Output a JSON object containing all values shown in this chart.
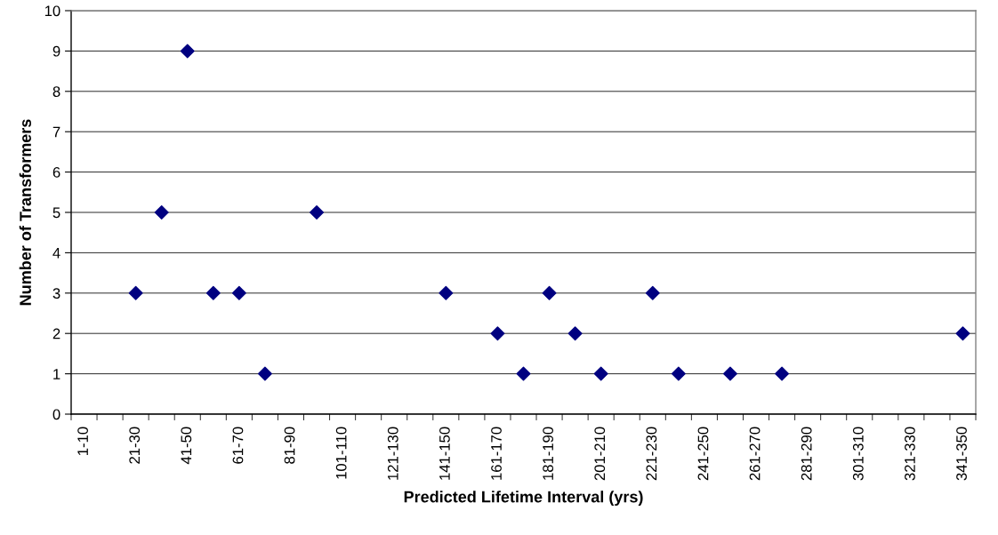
{
  "chart_data": {
    "type": "scatter",
    "xlabel": "Predicted Lifetime Interval (yrs)",
    "ylabel": "Number of Transformers",
    "categories": [
      "1-10",
      null,
      "21-30",
      null,
      "41-50",
      null,
      "61-70",
      null,
      "81-90",
      null,
      "101-110",
      null,
      "121-130",
      null,
      "141-150",
      null,
      "161-170",
      null,
      "181-190",
      null,
      "201-210",
      null,
      "221-230",
      null,
      "241-250",
      null,
      "261-270",
      null,
      "281-290",
      null,
      "301-310",
      null,
      "321-330",
      null,
      "341-350"
    ],
    "values": [
      null,
      null,
      3,
      5,
      9,
      3,
      3,
      1,
      null,
      5,
      null,
      null,
      null,
      null,
      3,
      null,
      2,
      1,
      3,
      2,
      1,
      null,
      3,
      1,
      null,
      1,
      null,
      1,
      null,
      null,
      null,
      null,
      null,
      null,
      2
    ],
    "color": "#000080",
    "marker": "diamond",
    "ylim": [
      0,
      10
    ],
    "yticks": [
      0,
      1,
      2,
      3,
      4,
      5,
      6,
      7,
      8,
      9,
      10
    ],
    "grid": "y",
    "legend": false
  }
}
